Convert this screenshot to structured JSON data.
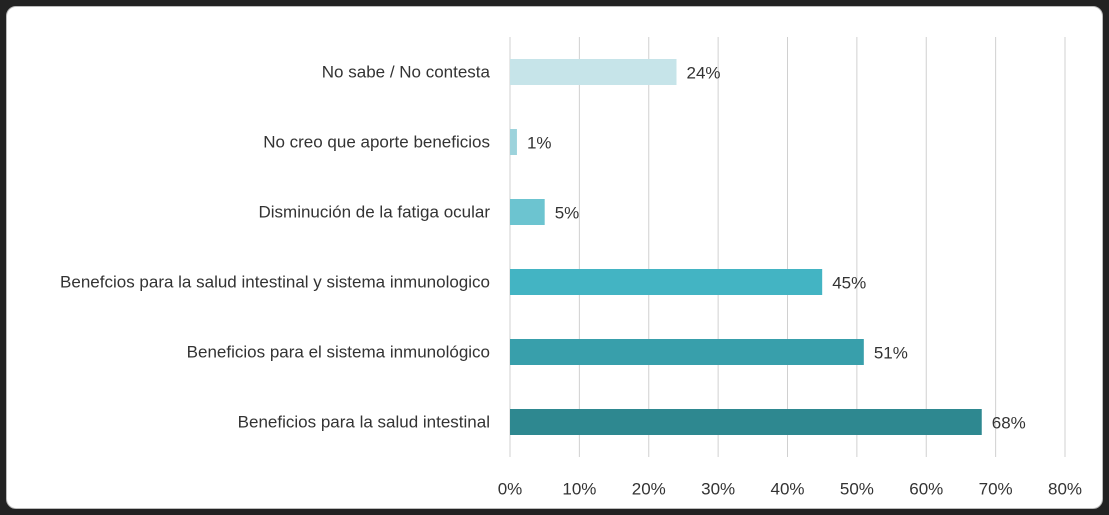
{
  "chart_data": {
    "type": "bar",
    "orientation": "horizontal",
    "categories": [
      "No sabe / No contesta",
      "No creo que aporte beneficios",
      "Disminución de la fatiga ocular",
      "Benefcios para la salud intestinal y sistema inmunologico",
      "Beneficios para el sistema inmunológico",
      "Beneficios para la salud intestinal"
    ],
    "values": [
      24,
      1,
      5,
      45,
      51,
      68
    ],
    "value_labels": [
      "24%",
      "1%",
      "5%",
      "45%",
      "51%",
      "68%"
    ],
    "colors": [
      "#c6e4e9",
      "#9dd3dc",
      "#6cc4d0",
      "#43b4c3",
      "#389fab",
      "#2e8890"
    ],
    "xlim": [
      0,
      80
    ],
    "xticks": [
      {
        "value": 0,
        "label": "0%"
      },
      {
        "value": 10,
        "label": "10%"
      },
      {
        "value": 20,
        "label": "20%"
      },
      {
        "value": 30,
        "label": "30%"
      },
      {
        "value": 40,
        "label": "40%"
      },
      {
        "value": 50,
        "label": "50%"
      },
      {
        "value": 60,
        "label": "60%"
      },
      {
        "value": 70,
        "label": "70%"
      },
      {
        "value": 80,
        "label": "80%"
      }
    ],
    "grid": true
  }
}
